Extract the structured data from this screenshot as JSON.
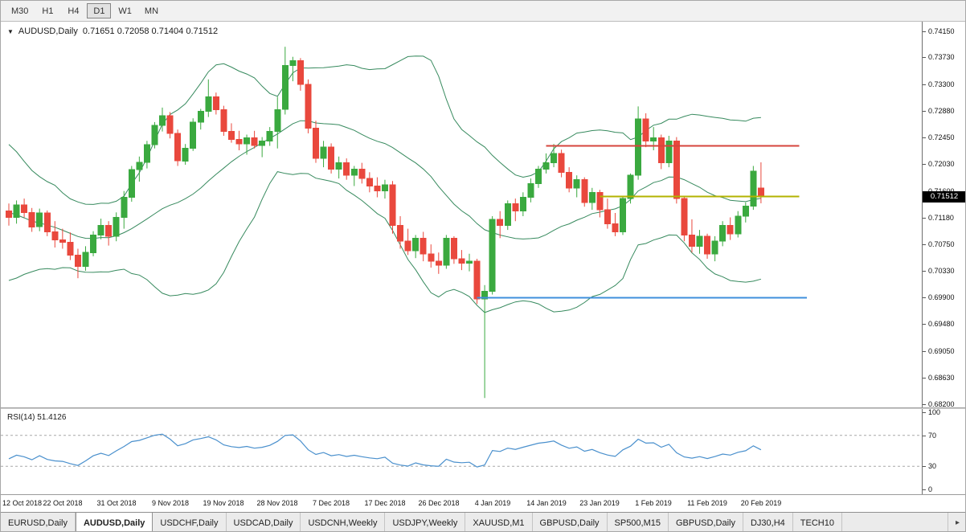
{
  "toolbar": {
    "timeframes": [
      "M30",
      "H1",
      "H4",
      "D1",
      "W1",
      "MN"
    ],
    "active_timeframe": "D1"
  },
  "chart": {
    "title": "AUDUSD,Daily",
    "ohlc_text": "0.71651 0.72058 0.71404 0.71512",
    "price_badge": "0.71512"
  },
  "rsi_panel": {
    "label": "RSI(14) 51.4126",
    "axis_labels": [
      "100",
      "70",
      "30",
      "0"
    ],
    "levels": [
      70,
      30
    ]
  },
  "tabs": {
    "items": [
      "EURUSD,Daily",
      "AUDUSD,Daily",
      "USDCHF,Daily",
      "USDCAD,Daily",
      "USDCNH,Weekly",
      "USDJPY,Weekly",
      "XAUUSD,M1",
      "GBPUSD,Daily",
      "SP500,M15",
      "GBPUSD,Daily",
      "DJ30,H4",
      "TECH10"
    ],
    "active": "AUDUSD,Daily",
    "scroll_right_icon": "▸"
  },
  "colors": {
    "up_candle": "#3aa93f",
    "down_candle": "#e9483d",
    "bollinger": "#378a5e",
    "rsi_line": "#4a90cd",
    "rsi_level_line": "#a8a8a8",
    "badge_bg": "#000000",
    "badge_text": "#ffffff"
  },
  "chart_data": {
    "type": "candlestick",
    "symbol": "AUDUSD",
    "timeframe": "Daily",
    "current_ohlc": {
      "open": 0.71651,
      "high": 0.72058,
      "low": 0.71404,
      "close": 0.71512
    },
    "ylim": [
      0.6815,
      0.743
    ],
    "price_axis_labels": [
      "0.74150",
      "0.73730",
      "0.73300",
      "0.72880",
      "0.72450",
      "0.72030",
      "0.71600",
      "0.71180",
      "0.70750",
      "0.70330",
      "0.69900",
      "0.69480",
      "0.69050",
      "0.68630",
      "0.68200"
    ],
    "indicators": {
      "bollinger_period": 20,
      "bollinger_dev": 2,
      "rsi_period": 14,
      "rsi_value": 51.4126
    },
    "hlines": [
      {
        "name": "resistance-line",
        "price": 0.7232,
        "from": 70,
        "to": 103,
        "color": "#d6453c"
      },
      {
        "name": "current-price-line",
        "price": 0.71512,
        "from": 77,
        "to": 103,
        "color": "#b3b300"
      },
      {
        "name": "support-line",
        "price": 0.699,
        "from": 61,
        "to": 104,
        "color": "#3f8fdc"
      }
    ],
    "date_labels": [
      {
        "i": 0,
        "label": "12 Oct 2018"
      },
      {
        "i": 7,
        "label": "22 Oct 2018"
      },
      {
        "i": 14,
        "label": "31 Oct 2018"
      },
      {
        "i": 21,
        "label": "9 Nov 2018"
      },
      {
        "i": 28,
        "label": "19 Nov 2018"
      },
      {
        "i": 35,
        "label": "28 Nov 2018"
      },
      {
        "i": 42,
        "label": "7 Dec 2018"
      },
      {
        "i": 49,
        "label": "17 Dec 2018"
      },
      {
        "i": 56,
        "label": "26 Dec 2018"
      },
      {
        "i": 63,
        "label": "4 Jan 2019"
      },
      {
        "i": 70,
        "label": "14 Jan 2019"
      },
      {
        "i": 77,
        "label": "23 Jan 2019"
      },
      {
        "i": 84,
        "label": "1 Feb 2019"
      },
      {
        "i": 91,
        "label": "11 Feb 2019"
      },
      {
        "i": 98,
        "label": "20 Feb 2019"
      }
    ],
    "pre_closes": [
      0.7215,
      0.722,
      0.7205,
      0.7185,
      0.7165,
      0.715,
      0.7172,
      0.7158,
      0.714,
      0.7118,
      0.7095,
      0.7078,
      0.709,
      0.706,
      0.705,
      0.7068,
      0.7052,
      0.7075,
      0.7102
    ],
    "candles": [
      [
        0.7128,
        0.714,
        0.7105,
        0.7118
      ],
      [
        0.7118,
        0.7145,
        0.7108,
        0.7138
      ],
      [
        0.7138,
        0.7148,
        0.7118,
        0.7126
      ],
      [
        0.7126,
        0.7133,
        0.7095,
        0.7103
      ],
      [
        0.7103,
        0.7132,
        0.7096,
        0.7125
      ],
      [
        0.7125,
        0.7129,
        0.7088,
        0.7095
      ],
      [
        0.7095,
        0.7112,
        0.707,
        0.7082
      ],
      [
        0.7082,
        0.71,
        0.7068,
        0.7078
      ],
      [
        0.7078,
        0.7094,
        0.705,
        0.7058
      ],
      [
        0.7058,
        0.7068,
        0.7021,
        0.704
      ],
      [
        0.704,
        0.7072,
        0.7033,
        0.7062
      ],
      [
        0.7062,
        0.7096,
        0.7056,
        0.709
      ],
      [
        0.709,
        0.7116,
        0.7083,
        0.7105
      ],
      [
        0.7105,
        0.7112,
        0.7073,
        0.7088
      ],
      [
        0.7088,
        0.7126,
        0.708,
        0.7118
      ],
      [
        0.7118,
        0.716,
        0.71,
        0.715
      ],
      [
        0.715,
        0.72,
        0.7143,
        0.7194
      ],
      [
        0.7194,
        0.7215,
        0.7175,
        0.7206
      ],
      [
        0.7206,
        0.724,
        0.7196,
        0.7234
      ],
      [
        0.7234,
        0.727,
        0.7228,
        0.7265
      ],
      [
        0.7265,
        0.7293,
        0.7255,
        0.728
      ],
      [
        0.728,
        0.7286,
        0.7244,
        0.7252
      ],
      [
        0.7252,
        0.7258,
        0.72,
        0.7208
      ],
      [
        0.7208,
        0.7235,
        0.7202,
        0.7228
      ],
      [
        0.7228,
        0.7276,
        0.7224,
        0.727
      ],
      [
        0.727,
        0.7291,
        0.7258,
        0.7287
      ],
      [
        0.7287,
        0.7338,
        0.7278,
        0.731
      ],
      [
        0.731,
        0.7317,
        0.7282,
        0.729
      ],
      [
        0.729,
        0.7296,
        0.7248,
        0.7255
      ],
      [
        0.7255,
        0.7268,
        0.7237,
        0.7242
      ],
      [
        0.7242,
        0.7256,
        0.7225,
        0.7235
      ],
      [
        0.7235,
        0.725,
        0.7218,
        0.7245
      ],
      [
        0.7245,
        0.7256,
        0.7228,
        0.7233
      ],
      [
        0.7233,
        0.7246,
        0.7214,
        0.724
      ],
      [
        0.724,
        0.7262,
        0.7232,
        0.7255
      ],
      [
        0.7255,
        0.731,
        0.7228,
        0.729
      ],
      [
        0.729,
        0.739,
        0.7282,
        0.736
      ],
      [
        0.736,
        0.7374,
        0.7335,
        0.7368
      ],
      [
        0.7368,
        0.7372,
        0.732,
        0.733
      ],
      [
        0.733,
        0.7338,
        0.7252,
        0.726
      ],
      [
        0.726,
        0.7272,
        0.7205,
        0.7212
      ],
      [
        0.7212,
        0.724,
        0.7198,
        0.723
      ],
      [
        0.723,
        0.7236,
        0.7188,
        0.7195
      ],
      [
        0.7195,
        0.7215,
        0.718,
        0.7205
      ],
      [
        0.7205,
        0.7212,
        0.7178,
        0.7185
      ],
      [
        0.7185,
        0.72,
        0.7168,
        0.7195
      ],
      [
        0.7195,
        0.7205,
        0.7172,
        0.718
      ],
      [
        0.718,
        0.719,
        0.7158,
        0.7168
      ],
      [
        0.7168,
        0.7182,
        0.715,
        0.716
      ],
      [
        0.716,
        0.7178,
        0.7148,
        0.717
      ],
      [
        0.717,
        0.7176,
        0.7092,
        0.7105
      ],
      [
        0.7105,
        0.712,
        0.7068,
        0.708
      ],
      [
        0.708,
        0.71,
        0.7058,
        0.7065
      ],
      [
        0.7065,
        0.709,
        0.7053,
        0.7085
      ],
      [
        0.7085,
        0.7095,
        0.7048,
        0.706
      ],
      [
        0.706,
        0.7075,
        0.7038,
        0.7048
      ],
      [
        0.7048,
        0.7062,
        0.7028,
        0.7042
      ],
      [
        0.7042,
        0.709,
        0.7036,
        0.7085
      ],
      [
        0.7085,
        0.7088,
        0.7044,
        0.7052
      ],
      [
        0.7052,
        0.7066,
        0.7034,
        0.7045
      ],
      [
        0.7045,
        0.706,
        0.7032,
        0.7048
      ],
      [
        0.7048,
        0.7052,
        0.698,
        0.6988
      ],
      [
        0.6988,
        0.701,
        0.683,
        0.7
      ],
      [
        0.7,
        0.712,
        0.6995,
        0.7115
      ],
      [
        0.7115,
        0.7128,
        0.7085,
        0.7105
      ],
      [
        0.7105,
        0.7145,
        0.7098,
        0.714
      ],
      [
        0.714,
        0.7148,
        0.7112,
        0.7128
      ],
      [
        0.7128,
        0.7158,
        0.712,
        0.715
      ],
      [
        0.715,
        0.718,
        0.7142,
        0.7172
      ],
      [
        0.7172,
        0.72,
        0.7165,
        0.7195
      ],
      [
        0.7195,
        0.722,
        0.7188,
        0.7205
      ],
      [
        0.7205,
        0.7235,
        0.7198,
        0.722
      ],
      [
        0.722,
        0.7226,
        0.7182,
        0.719
      ],
      [
        0.719,
        0.7198,
        0.7158,
        0.7165
      ],
      [
        0.7165,
        0.7185,
        0.715,
        0.7178
      ],
      [
        0.7178,
        0.7182,
        0.7135,
        0.7142
      ],
      [
        0.7142,
        0.7165,
        0.713,
        0.7158
      ],
      [
        0.7158,
        0.7162,
        0.7118,
        0.713
      ],
      [
        0.713,
        0.7148,
        0.71,
        0.7108
      ],
      [
        0.7108,
        0.7125,
        0.7088,
        0.7095
      ],
      [
        0.7095,
        0.7152,
        0.709,
        0.7148
      ],
      [
        0.7148,
        0.7188,
        0.714,
        0.7185
      ],
      [
        0.7185,
        0.7295,
        0.7178,
        0.7275
      ],
      [
        0.7275,
        0.7284,
        0.723,
        0.724
      ],
      [
        0.724,
        0.7262,
        0.7225,
        0.7245
      ],
      [
        0.7245,
        0.725,
        0.7195,
        0.7205
      ],
      [
        0.7205,
        0.7248,
        0.7198,
        0.724
      ],
      [
        0.724,
        0.7246,
        0.714,
        0.7148
      ],
      [
        0.7148,
        0.7152,
        0.708,
        0.709
      ],
      [
        0.709,
        0.7115,
        0.7062,
        0.7072
      ],
      [
        0.7072,
        0.7098,
        0.706,
        0.7088
      ],
      [
        0.7088,
        0.7092,
        0.7052,
        0.706
      ],
      [
        0.706,
        0.7088,
        0.7048,
        0.708
      ],
      [
        0.708,
        0.7112,
        0.7072,
        0.7105
      ],
      [
        0.7105,
        0.7118,
        0.7082,
        0.7092
      ],
      [
        0.7092,
        0.7128,
        0.7086,
        0.712
      ],
      [
        0.712,
        0.7142,
        0.711,
        0.7136
      ],
      [
        0.7136,
        0.72,
        0.713,
        0.7192
      ],
      [
        0.71651,
        0.72058,
        0.71404,
        0.71512
      ]
    ]
  }
}
